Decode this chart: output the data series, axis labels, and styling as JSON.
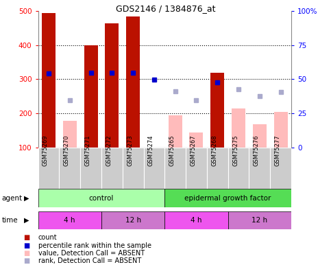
{
  "title": "GDS2146 / 1384876_at",
  "samples": [
    "GSM75269",
    "GSM75270",
    "GSM75271",
    "GSM75272",
    "GSM75273",
    "GSM75274",
    "GSM75265",
    "GSM75267",
    "GSM75268",
    "GSM75275",
    "GSM75276",
    "GSM75277"
  ],
  "count_values": [
    495,
    null,
    400,
    465,
    485,
    null,
    null,
    null,
    320,
    null,
    null,
    null
  ],
  "absent_count_values": [
    null,
    178,
    null,
    null,
    null,
    null,
    195,
    143,
    null,
    215,
    168,
    205
  ],
  "percentile_values": [
    317,
    null,
    318,
    318,
    318,
    298,
    null,
    null,
    290,
    null,
    null,
    null
  ],
  "absent_rank_values": [
    null,
    238,
    null,
    null,
    null,
    null,
    265,
    238,
    null,
    270,
    250,
    263
  ],
  "bar_color_present": "#bb1100",
  "bar_color_absent": "#ffbbbb",
  "dot_color_present": "#0000cc",
  "dot_color_absent": "#aaaacc",
  "agent_control_color": "#aaffaa",
  "agent_egf_color": "#55dd55",
  "time_4h_color": "#ee55ee",
  "time_12h_color": "#cc77cc",
  "agent_label_control": "control",
  "agent_label_egf": "epidermal growth factor",
  "background_color": "#ffffff",
  "sample_bg_color": "#cccccc",
  "spine_color": "#888888"
}
